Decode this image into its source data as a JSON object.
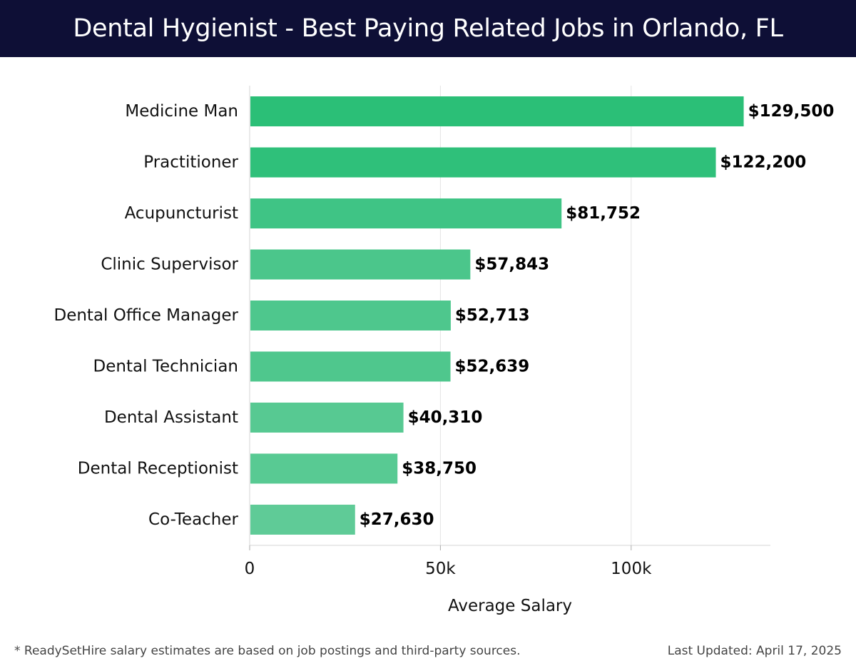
{
  "header": {
    "title": "Dental Hygienist - Best Paying Related Jobs in Orlando, FL"
  },
  "footer": {
    "note": "* ReadySetHire salary estimates are based on job postings and third-party sources.",
    "updated": "Last Updated: April 17, 2025"
  },
  "chart_data": {
    "type": "bar",
    "orientation": "horizontal",
    "title": "Dental Hygienist - Best Paying Related Jobs in Orlando, FL",
    "xlabel": "Average Salary",
    "ylabel": "",
    "xlim": [
      0,
      136500
    ],
    "xticks": [
      0,
      50000,
      100000
    ],
    "xtick_labels": [
      "0",
      "50k",
      "100k"
    ],
    "grid": true,
    "categories": [
      "Medicine Man",
      "Practitioner",
      "Acupuncturist",
      "Clinic Supervisor",
      "Dental Office Manager",
      "Dental Technician",
      "Dental Assistant",
      "Dental Receptionist",
      "Co-Teacher"
    ],
    "values": [
      129500,
      122200,
      81752,
      57843,
      52713,
      52639,
      40310,
      38750,
      27630
    ],
    "value_labels": [
      "$129,500",
      "$122,200",
      "$81,752",
      "$57,843",
      "$52,713",
      "$52,639",
      "$40,310",
      "$38,750",
      "$27,630"
    ],
    "colors": [
      "#2bbf77",
      "#2fc07a",
      "#3fc485",
      "#4bc68b",
      "#4ec78d",
      "#4fc78d",
      "#57c992",
      "#58ca93",
      "#5fcb97"
    ]
  }
}
